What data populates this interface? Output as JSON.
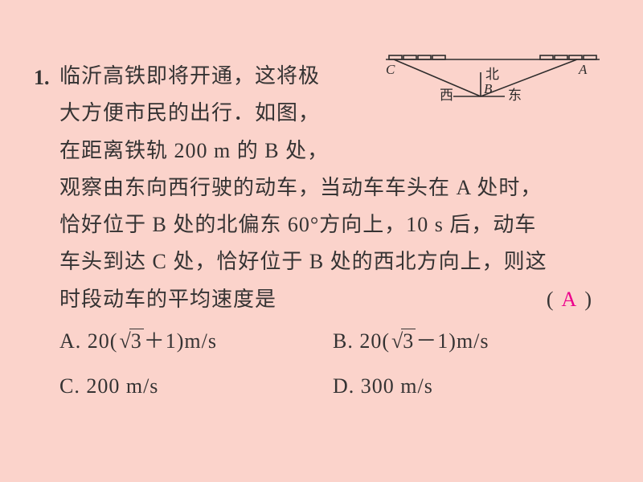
{
  "question": {
    "number": "1.",
    "line1": "临沂高铁即将开通，这将极",
    "line2": "大方便市民的出行．如图，",
    "line3": "在距离铁轨 200 m 的 B 处，",
    "line4": "观察由东向西行驶的动车，当动车车头在 A 处时，",
    "line5": "恰好位于 B 处的北偏东 60°方向上，10 s 后，动车",
    "line6": "车头到达 C 处，恰好位于 B 处的西北方向上，则这",
    "line7a": "时段动车的平均速度是",
    "paren_l": "(",
    "paren_r": ")",
    "answer": "A"
  },
  "options": {
    "a_prefix": "A. 20(",
    "a_suffix": "＋1)m/s",
    "a_rad": "3",
    "b_prefix": "B. 20(",
    "b_suffix": "－1)m/s",
    "b_rad": "3",
    "c": "C. 200 m/s",
    "d": "D. 300 m/s"
  },
  "figure": {
    "label_C": "C",
    "label_A": "A",
    "label_B": "B",
    "label_N": "北",
    "label_W": "西",
    "label_E": "东",
    "stroke": "#2e2c2c",
    "stroke_width": 1.6
  }
}
